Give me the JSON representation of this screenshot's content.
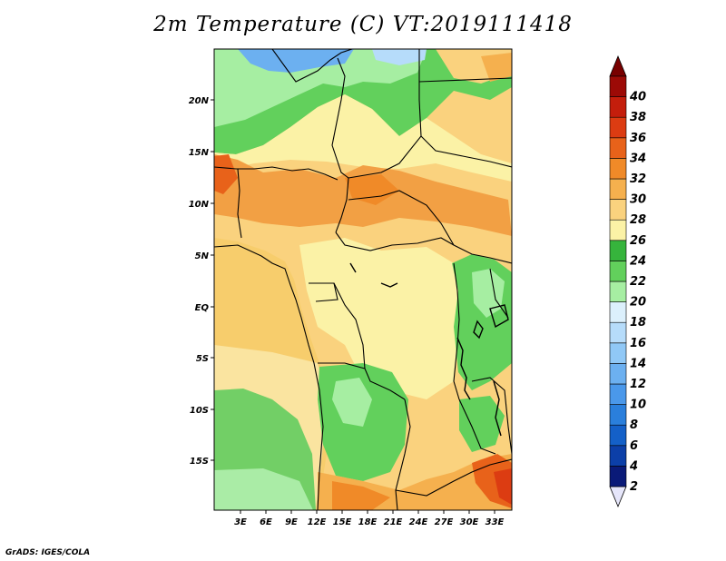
{
  "title": "2m Temperature (C) VT:2019111418",
  "credit": "GrADS: IGES/COLA",
  "map": {
    "lat_ticks": [
      "20N",
      "15N",
      "10N",
      "5N",
      "EQ",
      "5S",
      "10S",
      "15S"
    ],
    "lon_ticks": [
      "3E",
      "6E",
      "9E",
      "12E",
      "15E",
      "18E",
      "21E",
      "24E",
      "27E",
      "30E",
      "33E"
    ]
  },
  "colorbar": {
    "labels": [
      "2",
      "4",
      "6",
      "8",
      "10",
      "12",
      "14",
      "16",
      "18",
      "20",
      "22",
      "24",
      "26",
      "28",
      "30",
      "32",
      "34",
      "36",
      "38",
      "40"
    ],
    "colors": [
      "#0a1a78",
      "#0c3fa8",
      "#1460c8",
      "#2a7fdc",
      "#4a98ea",
      "#6cb0f0",
      "#90c8f6",
      "#b6dcfa",
      "#dcf0fc",
      "#a6eea2",
      "#62d05c",
      "#36b43c",
      "#fbf2a6",
      "#fad27e",
      "#f5b04e",
      "#f08a28",
      "#e8621a",
      "#dc3c12",
      "#c41e0c",
      "#9c0a06"
    ],
    "under_color": "#e6e6fa",
    "over_color": "#780000"
  },
  "colors": {
    "ocean_warm": "#f7cd6c",
    "ocean_mild": "#fae4a0",
    "ocean_cool_green": "#72cf66",
    "ocean_cold": "#aaeca6",
    "land_base": "#fad27e",
    "land_hot": "#f2a044",
    "land_green": "#62d05c",
    "land_cool": "#a6eea2",
    "desert_cold": "#6cb0f0"
  }
}
